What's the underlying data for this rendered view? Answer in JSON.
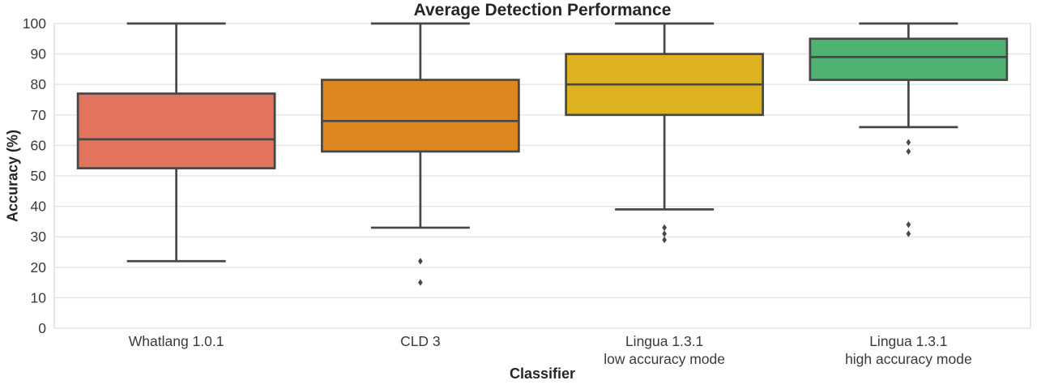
{
  "chart_data": {
    "type": "boxplot",
    "title": "Average Detection Performance",
    "xlabel": "Classifier",
    "ylabel": "Accuracy (%)",
    "ylim": [
      0,
      100
    ],
    "yticks": [
      0,
      10,
      20,
      30,
      40,
      50,
      60,
      70,
      80,
      90,
      100
    ],
    "grid": "horizontal",
    "legend": "none",
    "boxes": [
      {
        "category_lines": [
          "Whatlang 1.0.1"
        ],
        "stats": {
          "whisker_low": 22,
          "q1": 52.5,
          "median": 62,
          "q3": 77,
          "whisker_high": 100
        },
        "outliers": [],
        "fill_color": "#E2745E"
      },
      {
        "category_lines": [
          "CLD 3"
        ],
        "stats": {
          "whisker_low": 33,
          "q1": 58,
          "median": 68,
          "q3": 81.5,
          "whisker_high": 100
        },
        "outliers": [
          22,
          15
        ],
        "fill_color": "#DE8620"
      },
      {
        "category_lines": [
          "Lingua 1.3.1",
          "low accuracy mode"
        ],
        "stats": {
          "whisker_low": 39,
          "q1": 70,
          "median": 80,
          "q3": 90,
          "whisker_high": 100
        },
        "outliers": [
          33,
          31,
          29
        ],
        "fill_color": "#DDB220"
      },
      {
        "category_lines": [
          "Lingua 1.3.1",
          "high accuracy mode"
        ],
        "stats": {
          "whisker_low": 66,
          "q1": 81.5,
          "median": 89,
          "q3": 95,
          "whisker_high": 100
        },
        "outliers": [
          61,
          58,
          34,
          31
        ],
        "fill_color": "#4FB272"
      }
    ],
    "style": {
      "line_color": "#474747",
      "grid_color": "#E5E5E5",
      "spine_color": "#DBDBDB",
      "tick_color": "#3A3A3A",
      "title_color": "#262626",
      "background": "#FFFFFF"
    }
  }
}
